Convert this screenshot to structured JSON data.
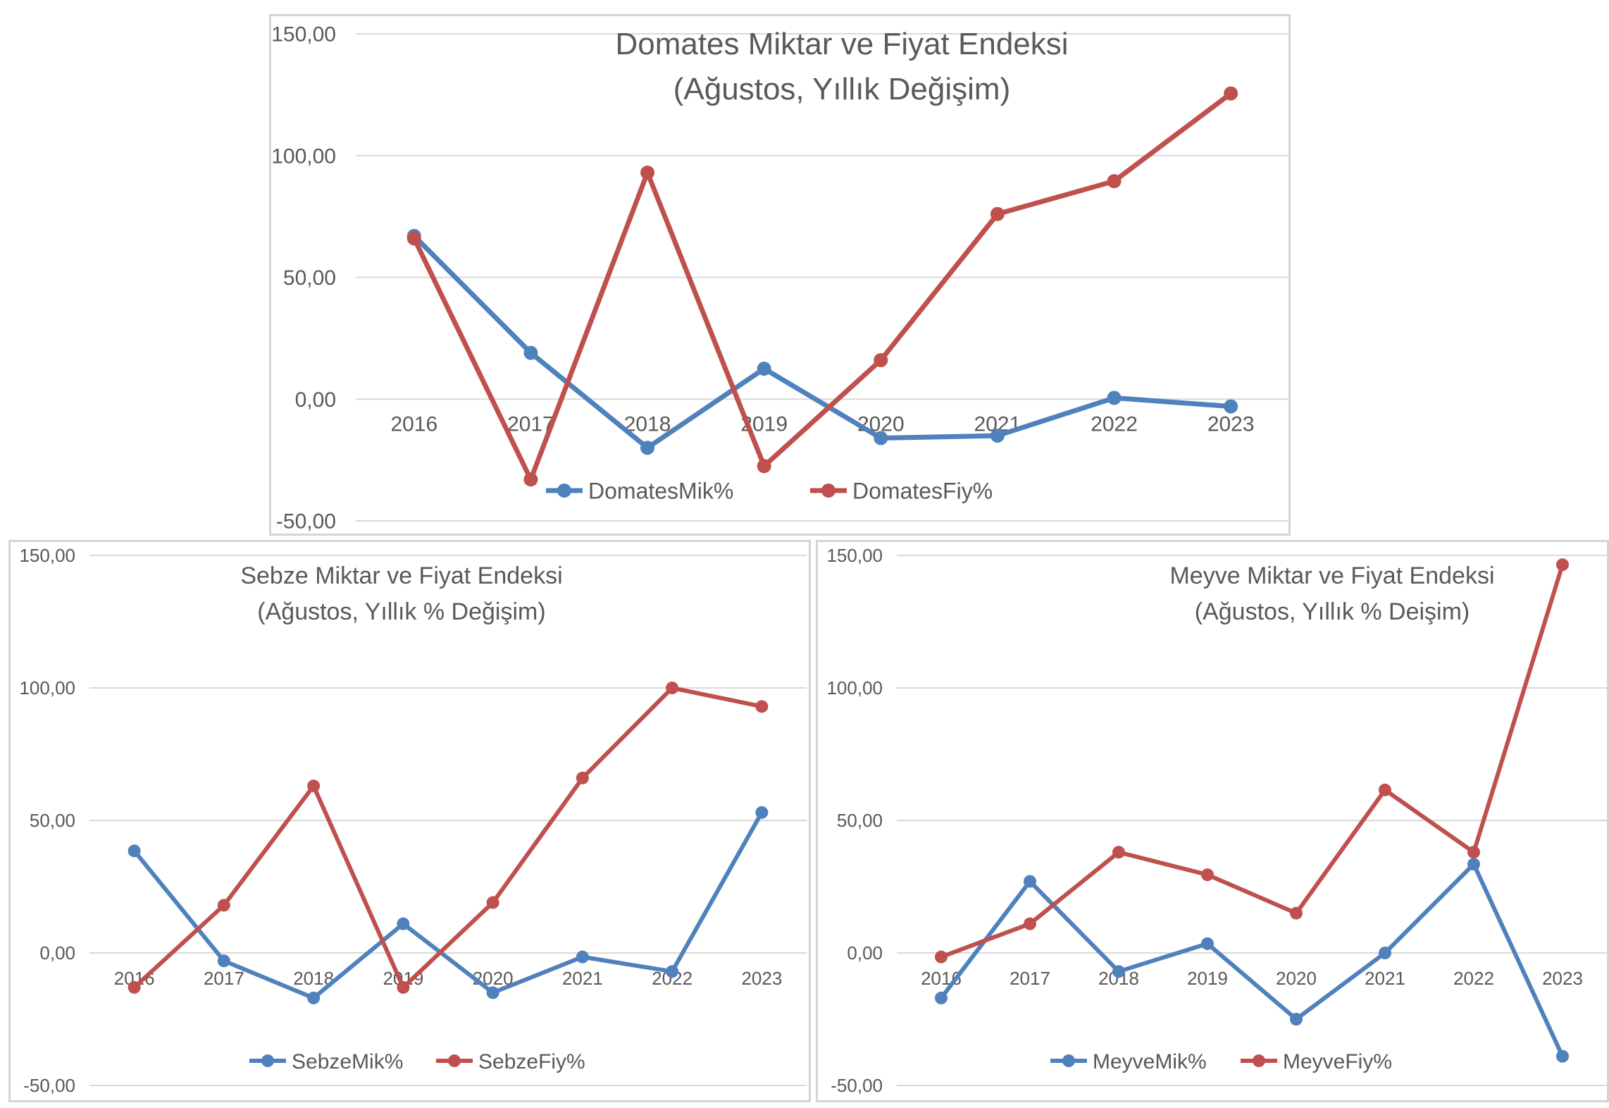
{
  "chart_data": [
    {
      "type": "line",
      "title": "Domates Miktar ve Fiyat Endeksi",
      "subtitle": "(Ağustos, Yıllık Değişim)",
      "categories": [
        "2016",
        "2017",
        "2018",
        "2019",
        "2020",
        "2021",
        "2022",
        "2023"
      ],
      "ylim": [
        -50,
        150
      ],
      "yticks": [
        "-50,00",
        "0,00",
        "50,00",
        "100,00",
        "150,00"
      ],
      "grid": true,
      "legend_position": "bottom",
      "series": [
        {
          "name": "DomatesMik%",
          "color": "#4f81bd",
          "values": [
            67,
            19,
            -20,
            12.5,
            -16,
            -15,
            0.5,
            -3
          ]
        },
        {
          "name": "DomatesFiy%",
          "color": "#c0504d",
          "values": [
            66,
            -33,
            93,
            -27.5,
            16,
            76,
            89.5,
            125.5
          ]
        }
      ]
    },
    {
      "type": "line",
      "title": "Sebze Miktar ve Fiyat Endeksi",
      "subtitle": "(Ağustos, Yıllık % Değişim)",
      "categories": [
        "2016",
        "2017",
        "2018",
        "2019",
        "2020",
        "2021",
        "2022",
        "2023"
      ],
      "ylim": [
        -50,
        150
      ],
      "yticks": [
        "-50,00",
        "0,00",
        "50,00",
        "100,00",
        "150,00"
      ],
      "grid": true,
      "legend_position": "bottom",
      "series": [
        {
          "name": "SebzeMik%",
          "color": "#4f81bd",
          "values": [
            38.5,
            -3,
            -17,
            11,
            -15,
            -1.5,
            -7,
            53
          ]
        },
        {
          "name": "SebzeFiy%",
          "color": "#c0504d",
          "values": [
            -13,
            18,
            63,
            -13,
            19,
            66,
            100,
            93
          ]
        }
      ]
    },
    {
      "type": "line",
      "title": "Meyve Miktar ve Fiyat Endeksi",
      "subtitle": "(Ağustos, Yıllık % Deişim)",
      "categories": [
        "2016",
        "2017",
        "2018",
        "2019",
        "2020",
        "2021",
        "2022",
        "2023"
      ],
      "ylim": [
        -50,
        150
      ],
      "yticks": [
        "-50,00",
        "0,00",
        "50,00",
        "100,00",
        "150,00"
      ],
      "grid": true,
      "legend_position": "bottom",
      "series": [
        {
          "name": "MeyveMik%",
          "color": "#4f81bd",
          "values": [
            -17,
            27,
            -7,
            3.5,
            -25,
            0,
            33.5,
            -39
          ]
        },
        {
          "name": "MeyveFiy%",
          "color": "#c0504d",
          "values": [
            -1.5,
            11,
            38,
            29.5,
            15,
            61.5,
            38,
            146.5
          ]
        }
      ]
    }
  ]
}
